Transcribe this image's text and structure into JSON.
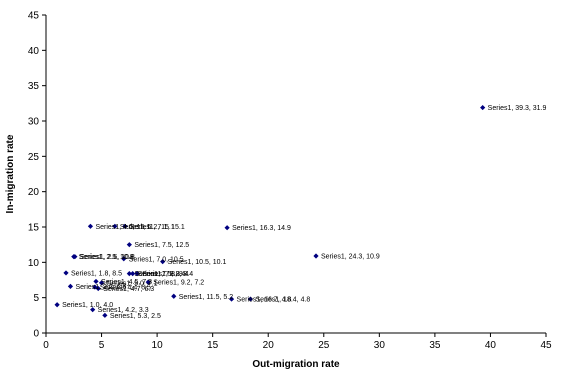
{
  "chart_data": {
    "type": "scatter",
    "title": "",
    "xlabel": "Out-migration rate",
    "ylabel": "In-migration rate",
    "xlim": [
      0,
      45
    ],
    "ylim": [
      0,
      45
    ],
    "x_ticks": [
      0,
      5,
      10,
      15,
      20,
      25,
      30,
      35,
      40,
      45
    ],
    "y_ticks": [
      0,
      5,
      10,
      15,
      20,
      25,
      30,
      35,
      40,
      45
    ],
    "grid": false,
    "legend": "none",
    "marker_color": "#000080",
    "series": [
      {
        "points": [
          {
            "x": 39.3,
            "y": 31.9,
            "label": "Series1, 39.3, 31.9"
          },
          {
            "x": 24.3,
            "y": 10.9,
            "label": "Series1, 24.3, 10.9"
          },
          {
            "x": 18.4,
            "y": 4.8,
            "label": "Series1, 18.4, 4.8"
          },
          {
            "x": 16.7,
            "y": 4.8,
            "label": "Series1, 16.7, 4.8"
          },
          {
            "x": 16.3,
            "y": 14.9,
            "label": "Series1, 16.3, 14.9"
          },
          {
            "x": 11.5,
            "y": 5.2,
            "label": "Series1, 11.5, 5.2"
          },
          {
            "x": 10.5,
            "y": 10.1,
            "label": "Series1, 10.5, 10.1"
          },
          {
            "x": 9.2,
            "y": 7.2,
            "label": "Series1, 9.2, 7.2"
          },
          {
            "x": 8.2,
            "y": 8.4,
            "label": "Series1, 8.2, 8.4"
          },
          {
            "x": 7.8,
            "y": 8.4,
            "label": "Series1, 7.8, 8.4"
          },
          {
            "x": 7.5,
            "y": 12.5,
            "label": "Series1, 7.5, 12.5"
          },
          {
            "x": 7.5,
            "y": 8.4,
            "label": "Series1, 7.5, 8.4"
          },
          {
            "x": 7.1,
            "y": 15.1,
            "label": "Series1, 7.1, 15.1"
          },
          {
            "x": 7.0,
            "y": 10.5,
            "label": "Series1, 7.0, 10.5"
          },
          {
            "x": 6.2,
            "y": 15.1,
            "label": "Series1, 6.2, 15.1"
          },
          {
            "x": 5.3,
            "y": 2.5,
            "label": "Series1, 5.3, 2.5"
          },
          {
            "x": 5.0,
            "y": 7.1,
            "label": "Series1, 5.0, 7.1"
          },
          {
            "x": 4.7,
            "y": 6.3,
            "label": "Series1, 4.7, 6.3"
          },
          {
            "x": 4.5,
            "y": 7.3,
            "label": "Series1, 4.5, 7.3"
          },
          {
            "x": 4.4,
            "y": 6.5,
            "label": "Series1, 4.4, 6.5"
          },
          {
            "x": 4.2,
            "y": 3.3,
            "label": "Series1, 4.2, 3.3"
          },
          {
            "x": 4.0,
            "y": 15.1,
            "label": "Series1, 4.0, 15.1"
          },
          {
            "x": 2.6,
            "y": 10.8,
            "label": "Series1, 2.6, 10.8"
          },
          {
            "x": 2.5,
            "y": 10.8,
            "label": "Series1, 2.5, 10.8"
          },
          {
            "x": 2.2,
            "y": 6.6,
            "label": "Series1, 2.2, 6.6"
          },
          {
            "x": 1.8,
            "y": 8.5,
            "label": "Series1, 1.8, 8.5"
          },
          {
            "x": 1.0,
            "y": 4.0,
            "label": "Series1, 1.0, 4.0"
          }
        ]
      }
    ]
  }
}
